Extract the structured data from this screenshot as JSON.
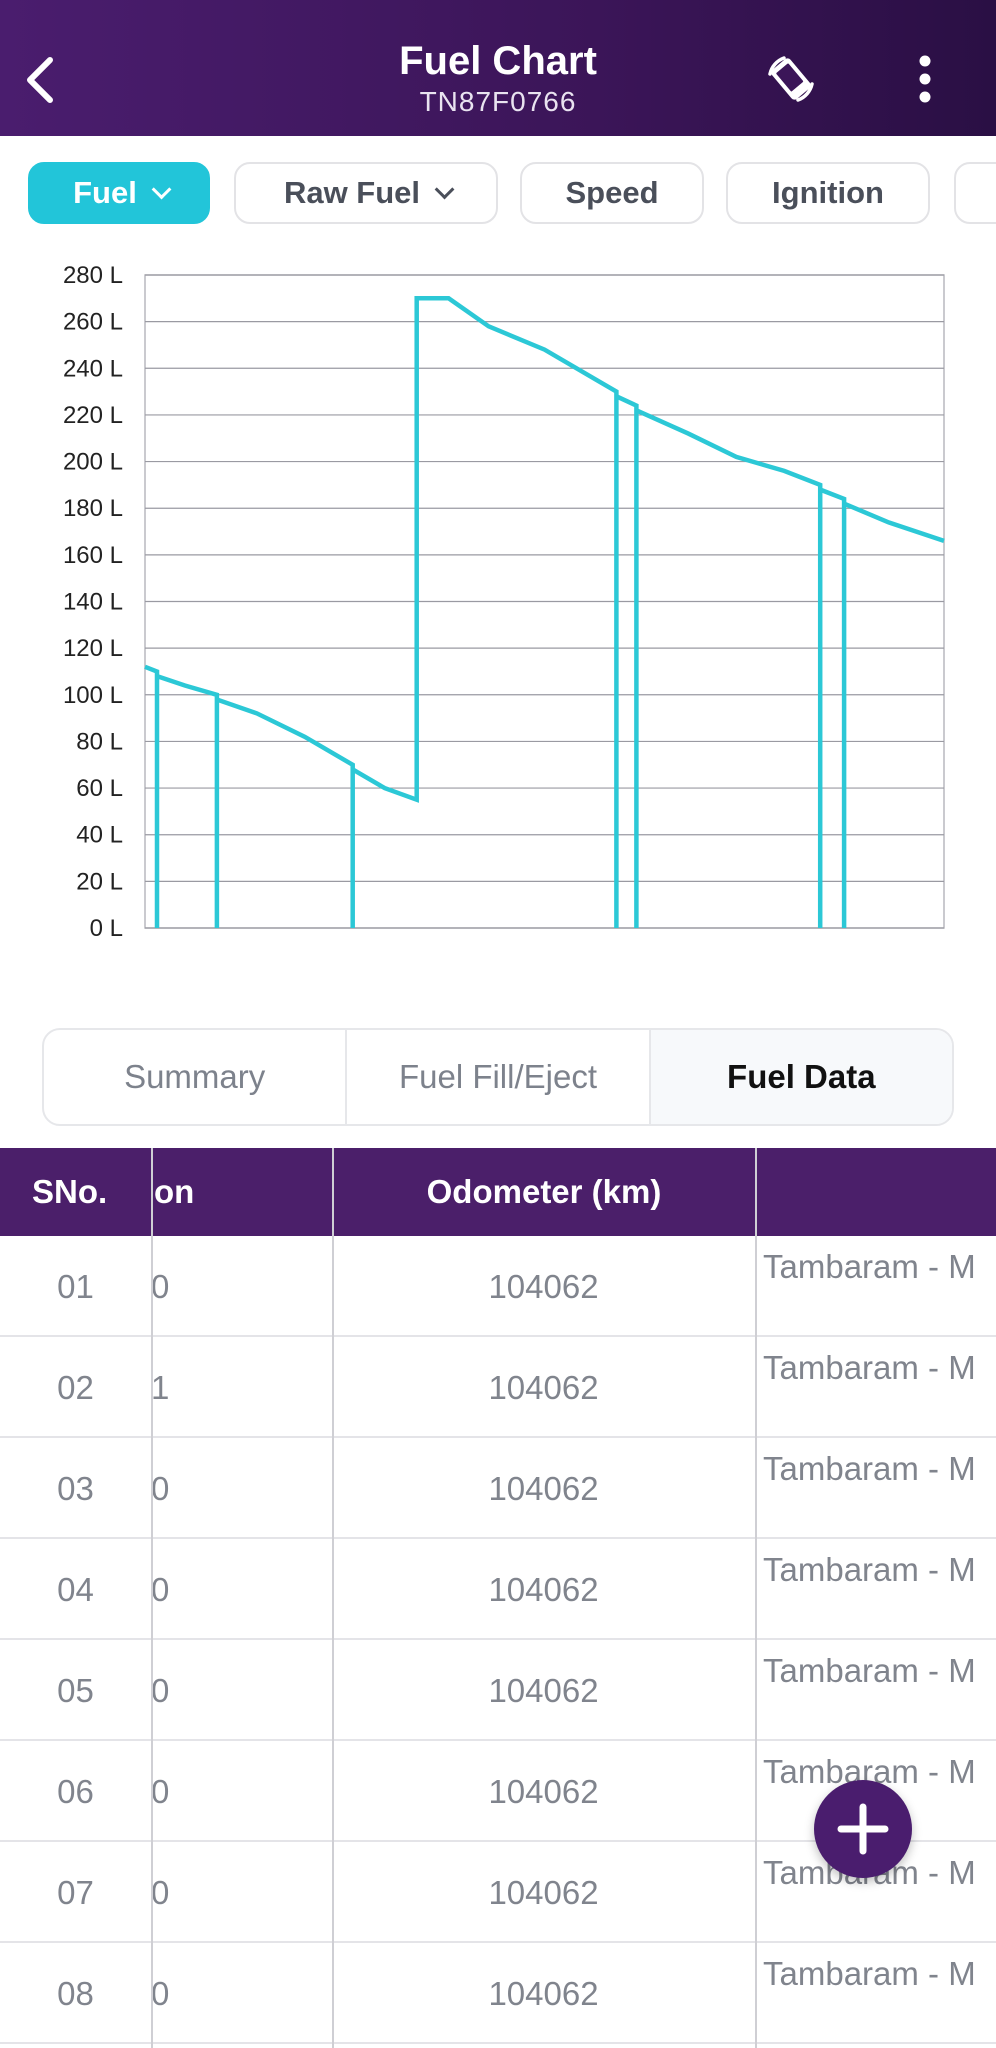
{
  "header": {
    "title": "Fuel Chart",
    "subtitle": "TN87F0766",
    "back_icon": "chevron-left-icon",
    "rotate_icon": "screen-rotate-icon",
    "more_icon": "more-vertical-icon"
  },
  "filters": [
    {
      "label": "Fuel",
      "active": true,
      "dropdown": true
    },
    {
      "label": "Raw Fuel",
      "active": false,
      "dropdown": true
    },
    {
      "label": "Speed",
      "active": false,
      "dropdown": false
    },
    {
      "label": "Ignition",
      "active": false,
      "dropdown": false
    }
  ],
  "colors": {
    "header": "#4a1d6e",
    "accent": "#22c5d9",
    "series": "#2cc8d6",
    "table_header": "#4b1f6a"
  },
  "chart_data": {
    "type": "line",
    "title": "",
    "xlabel": "",
    "ylabel": "",
    "ylim": [
      0,
      280
    ],
    "yticks": [
      "0 L",
      "20 L",
      "40 L",
      "60 L",
      "80 L",
      "100 L",
      "120 L",
      "140 L",
      "160 L",
      "180 L",
      "200 L",
      "220 L",
      "240 L",
      "260 L",
      "280 L"
    ],
    "grid": true,
    "series": [
      {
        "points": [
          [
            0,
            112
          ],
          [
            1.5,
            110
          ],
          [
            1.5,
            0
          ],
          [
            1.5,
            108
          ],
          [
            5,
            104
          ],
          [
            9,
            100
          ],
          [
            9,
            0
          ],
          [
            9,
            98
          ],
          [
            14,
            92
          ],
          [
            20,
            82
          ],
          [
            26,
            70
          ],
          [
            26,
            0
          ],
          [
            26,
            68
          ],
          [
            30,
            60
          ],
          [
            34,
            55
          ],
          [
            34,
            270
          ],
          [
            38,
            270
          ],
          [
            43,
            258
          ],
          [
            50,
            248
          ],
          [
            59,
            230
          ],
          [
            59,
            0
          ],
          [
            59,
            228
          ],
          [
            61.5,
            224
          ],
          [
            61.5,
            0
          ],
          [
            61.5,
            222
          ],
          [
            68,
            212
          ],
          [
            74,
            202
          ],
          [
            80,
            196
          ],
          [
            84.5,
            190
          ],
          [
            84.5,
            0
          ],
          [
            84.5,
            188
          ],
          [
            87.5,
            184
          ],
          [
            87.5,
            0
          ],
          [
            87.5,
            182
          ],
          [
            93,
            174
          ],
          [
            100,
            166
          ]
        ]
      }
    ]
  },
  "tabs": [
    {
      "label": "Summary",
      "active": false
    },
    {
      "label": "Fuel Fill/Eject",
      "active": false
    },
    {
      "label": "Fuel Data",
      "active": true
    }
  ],
  "table": {
    "headers": [
      "SNo.",
      "on",
      "Odometer (km)",
      ""
    ],
    "rows": [
      {
        "sno": "01",
        "col2": "0",
        "odometer": "104062",
        "location": "Tambaram - M"
      },
      {
        "sno": "02",
        "col2": "1",
        "odometer": "104062",
        "location": "Tambaram - M"
      },
      {
        "sno": "03",
        "col2": "0",
        "odometer": "104062",
        "location": "Tambaram - M"
      },
      {
        "sno": "04",
        "col2": "0",
        "odometer": "104062",
        "location": "Tambaram - M"
      },
      {
        "sno": "05",
        "col2": "0",
        "odometer": "104062",
        "location": "Tambaram - M"
      },
      {
        "sno": "06",
        "col2": "0",
        "odometer": "104062",
        "location": "Tambaram - M"
      },
      {
        "sno": "07",
        "col2": "0",
        "odometer": "104062",
        "location": "Tambaram - M"
      },
      {
        "sno": "08",
        "col2": "0",
        "odometer": "104062",
        "location": "Tambaram - M"
      }
    ]
  },
  "fab": {
    "icon": "plus-icon"
  }
}
